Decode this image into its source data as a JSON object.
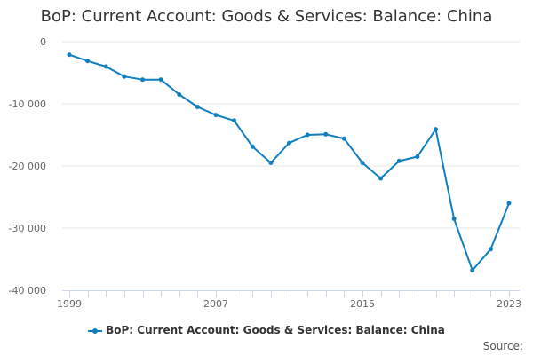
{
  "chart_data": {
    "type": "line",
    "title": "BoP: Current Account: Goods & Services: Balance: China",
    "xlabel": "",
    "ylabel": "",
    "x": [
      1999,
      2000,
      2001,
      2002,
      2003,
      2004,
      2005,
      2006,
      2007,
      2008,
      2009,
      2010,
      2011,
      2012,
      2013,
      2014,
      2015,
      2016,
      2017,
      2018,
      2019,
      2020,
      2021,
      2022,
      2023
    ],
    "xlim": [
      1999,
      2023
    ],
    "ylim": [
      -40000,
      0
    ],
    "x_ticks": [
      1999,
      2007,
      2015,
      2023
    ],
    "x_tick_labels": [
      "1999",
      "2007",
      "2015",
      "2023"
    ],
    "y_ticks": [
      0,
      -10000,
      -20000,
      -30000,
      -40000
    ],
    "y_tick_labels": [
      "0",
      "-10 000",
      "-20 000",
      "-30 000",
      "-40 000"
    ],
    "series": [
      {
        "name": "BoP: Current Account: Goods & Services: Balance: China",
        "color": "#0f7fbf",
        "values": [
          -2100,
          -3100,
          -4000,
          -5600,
          -6100,
          -6100,
          -8500,
          -10500,
          -11800,
          -12700,
          -16900,
          -19500,
          -16300,
          -15000,
          -14900,
          -15600,
          -19500,
          -22000,
          -19200,
          -18500,
          -14100,
          -28500,
          -36800,
          -33400,
          -26000
        ]
      }
    ],
    "grid": true,
    "legend": "bottom-center"
  },
  "credits": {
    "label": "Source:"
  }
}
